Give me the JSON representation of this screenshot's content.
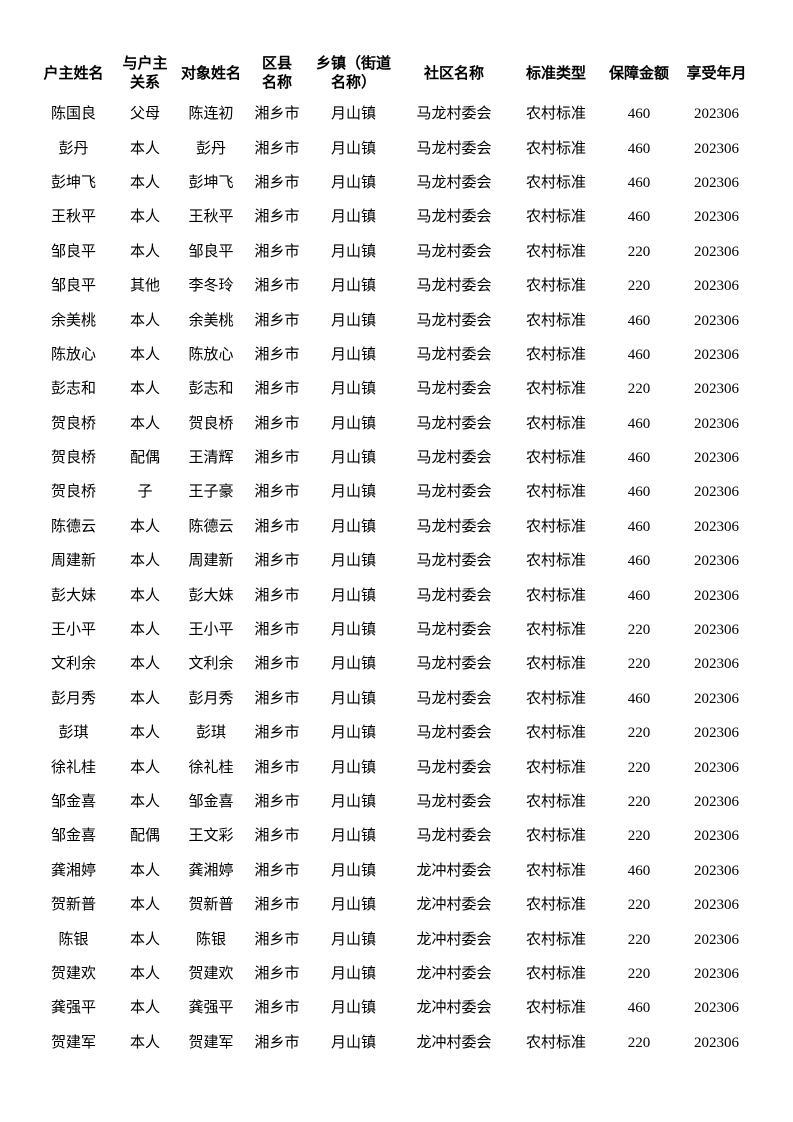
{
  "page": {
    "background_color": "#ffffff",
    "text_color": "#000000"
  },
  "table": {
    "headers": [
      {
        "key": "household_head_name",
        "label": "户主姓名"
      },
      {
        "key": "relation_to_head",
        "label": "与户主\n关系"
      },
      {
        "key": "person_name",
        "label": "对象姓名"
      },
      {
        "key": "county_name",
        "label": "区县\n名称"
      },
      {
        "key": "town_name",
        "label": "乡镇（街道\n名称）"
      },
      {
        "key": "community_name",
        "label": "社区名称"
      },
      {
        "key": "standard_type",
        "label": "标准类型"
      },
      {
        "key": "guarantee_amount",
        "label": "保障金额"
      },
      {
        "key": "benefit_period",
        "label": "享受年月"
      }
    ],
    "rows": [
      [
        "陈国良",
        "父母",
        "陈连初",
        "湘乡市",
        "月山镇",
        "马龙村委会",
        "农村标准",
        "460",
        "202306"
      ],
      [
        "彭丹",
        "本人",
        "彭丹",
        "湘乡市",
        "月山镇",
        "马龙村委会",
        "农村标准",
        "460",
        "202306"
      ],
      [
        "彭坤飞",
        "本人",
        "彭坤飞",
        "湘乡市",
        "月山镇",
        "马龙村委会",
        "农村标准",
        "460",
        "202306"
      ],
      [
        "王秋平",
        "本人",
        "王秋平",
        "湘乡市",
        "月山镇",
        "马龙村委会",
        "农村标准",
        "460",
        "202306"
      ],
      [
        "邹良平",
        "本人",
        "邹良平",
        "湘乡市",
        "月山镇",
        "马龙村委会",
        "农村标准",
        "220",
        "202306"
      ],
      [
        "邹良平",
        "其他",
        "李冬玲",
        "湘乡市",
        "月山镇",
        "马龙村委会",
        "农村标准",
        "220",
        "202306"
      ],
      [
        "余美桃",
        "本人",
        "余美桃",
        "湘乡市",
        "月山镇",
        "马龙村委会",
        "农村标准",
        "460",
        "202306"
      ],
      [
        "陈放心",
        "本人",
        "陈放心",
        "湘乡市",
        "月山镇",
        "马龙村委会",
        "农村标准",
        "460",
        "202306"
      ],
      [
        "彭志和",
        "本人",
        "彭志和",
        "湘乡市",
        "月山镇",
        "马龙村委会",
        "农村标准",
        "220",
        "202306"
      ],
      [
        "贺良桥",
        "本人",
        "贺良桥",
        "湘乡市",
        "月山镇",
        "马龙村委会",
        "农村标准",
        "460",
        "202306"
      ],
      [
        "贺良桥",
        "配偶",
        "王清辉",
        "湘乡市",
        "月山镇",
        "马龙村委会",
        "农村标准",
        "460",
        "202306"
      ],
      [
        "贺良桥",
        "子",
        "王子豪",
        "湘乡市",
        "月山镇",
        "马龙村委会",
        "农村标准",
        "460",
        "202306"
      ],
      [
        "陈德云",
        "本人",
        "陈德云",
        "湘乡市",
        "月山镇",
        "马龙村委会",
        "农村标准",
        "460",
        "202306"
      ],
      [
        "周建新",
        "本人",
        "周建新",
        "湘乡市",
        "月山镇",
        "马龙村委会",
        "农村标准",
        "460",
        "202306"
      ],
      [
        "彭大妹",
        "本人",
        "彭大妹",
        "湘乡市",
        "月山镇",
        "马龙村委会",
        "农村标准",
        "460",
        "202306"
      ],
      [
        "王小平",
        "本人",
        "王小平",
        "湘乡市",
        "月山镇",
        "马龙村委会",
        "农村标准",
        "220",
        "202306"
      ],
      [
        "文利余",
        "本人",
        "文利余",
        "湘乡市",
        "月山镇",
        "马龙村委会",
        "农村标准",
        "220",
        "202306"
      ],
      [
        "彭月秀",
        "本人",
        "彭月秀",
        "湘乡市",
        "月山镇",
        "马龙村委会",
        "农村标准",
        "460",
        "202306"
      ],
      [
        "彭琪",
        "本人",
        "彭琪",
        "湘乡市",
        "月山镇",
        "马龙村委会",
        "农村标准",
        "220",
        "202306"
      ],
      [
        "徐礼桂",
        "本人",
        "徐礼桂",
        "湘乡市",
        "月山镇",
        "马龙村委会",
        "农村标准",
        "220",
        "202306"
      ],
      [
        "邹金喜",
        "本人",
        "邹金喜",
        "湘乡市",
        "月山镇",
        "马龙村委会",
        "农村标准",
        "220",
        "202306"
      ],
      [
        "邹金喜",
        "配偶",
        "王文彩",
        "湘乡市",
        "月山镇",
        "马龙村委会",
        "农村标准",
        "220",
        "202306"
      ],
      [
        "龚湘婷",
        "本人",
        "龚湘婷",
        "湘乡市",
        "月山镇",
        "龙冲村委会",
        "农村标准",
        "460",
        "202306"
      ],
      [
        "贺新普",
        "本人",
        "贺新普",
        "湘乡市",
        "月山镇",
        "龙冲村委会",
        "农村标准",
        "220",
        "202306"
      ],
      [
        "陈银",
        "本人",
        "陈银",
        "湘乡市",
        "月山镇",
        "龙冲村委会",
        "农村标准",
        "220",
        "202306"
      ],
      [
        "贺建欢",
        "本人",
        "贺建欢",
        "湘乡市",
        "月山镇",
        "龙冲村委会",
        "农村标准",
        "220",
        "202306"
      ],
      [
        "龚强平",
        "本人",
        "龚强平",
        "湘乡市",
        "月山镇",
        "龙冲村委会",
        "农村标准",
        "460",
        "202306"
      ],
      [
        "贺建军",
        "本人",
        "贺建军",
        "湘乡市",
        "月山镇",
        "龙冲村委会",
        "农村标准",
        "220",
        "202306"
      ]
    ]
  }
}
